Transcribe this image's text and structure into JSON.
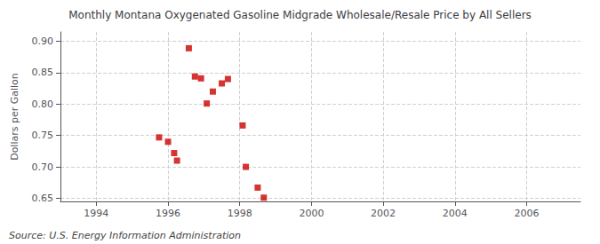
{
  "chart_data": {
    "type": "scatter",
    "title": "Monthly Montana Oxygenated Gasoline Midgrade Wholesale/Resale Price by All Sellers",
    "ylabel": "Dollars per Gallon",
    "annotation": "Source: U.S. Energy Information Administration",
    "x": [
      1995.75,
      1996.0,
      1996.17,
      1996.25,
      1996.58,
      1996.75,
      1996.92,
      1997.08,
      1997.25,
      1997.5,
      1997.67,
      1998.08,
      1998.17,
      1998.5,
      1998.67
    ],
    "values": [
      0.747,
      0.74,
      0.722,
      0.71,
      0.889,
      0.844,
      0.841,
      0.801,
      0.82,
      0.833,
      0.84,
      0.766,
      0.7,
      0.667,
      0.651
    ],
    "color": "#cc0000",
    "marker": "square",
    "xlim": [
      1993,
      2007.5
    ],
    "ylim": [
      0.645,
      0.915
    ],
    "xticks": [
      1994,
      1996,
      1998,
      2000,
      2002,
      2004,
      2006
    ],
    "yticks": [
      0.65,
      {
        "value": 0.7,
        "label": "0.70"
      },
      0.75,
      {
        "value": 0.8,
        "label": "0.80"
      },
      0.85,
      {
        "value": 0.9,
        "label": "0.90"
      }
    ],
    "grid": true
  }
}
